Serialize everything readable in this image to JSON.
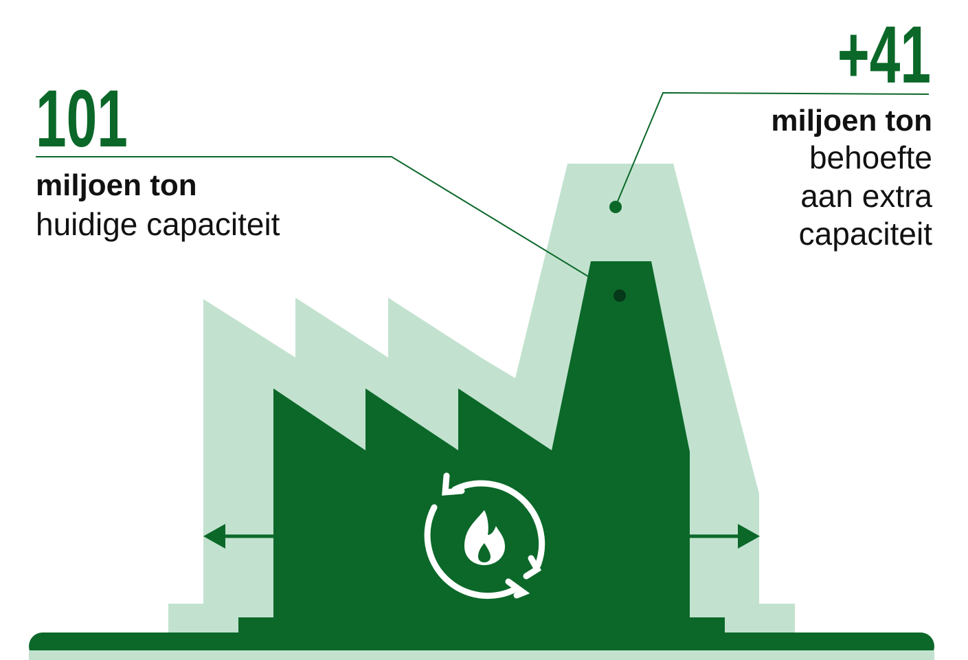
{
  "current": {
    "value": "101",
    "unit": "miljoen ton",
    "label": "huidige capaciteit"
  },
  "extra": {
    "value": "+41",
    "unit": "miljoen ton",
    "label_lines": [
      "behoefte",
      "aan extra",
      "capaciteit"
    ]
  }
}
